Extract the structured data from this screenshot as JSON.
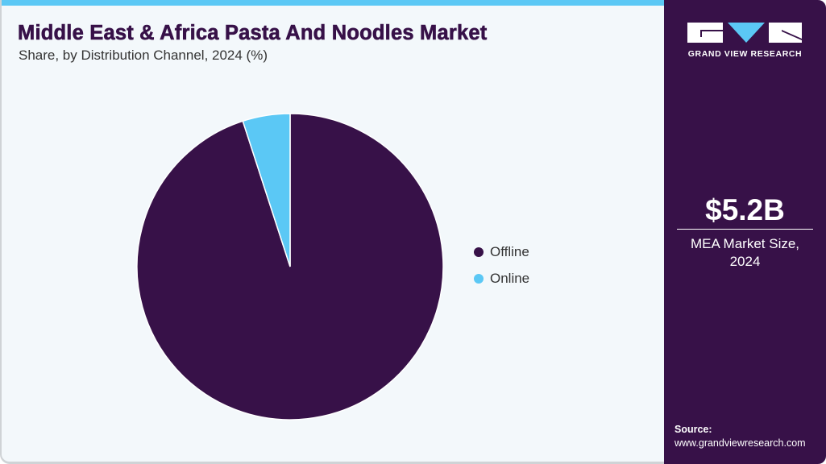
{
  "header": {
    "title": "Middle East & Africa Pasta And Noodles Market",
    "subtitle": "Share, by Distribution Channel, 2024 (%)"
  },
  "colors": {
    "offline": "#371148",
    "online": "#5bc8f5",
    "background": "#f3f8fb",
    "side_panel": "#371148",
    "accent_bar": "#5bc8f5"
  },
  "legend": {
    "items": [
      {
        "label": "Offline",
        "color": "#371148"
      },
      {
        "label": "Online",
        "color": "#5bc8f5"
      }
    ]
  },
  "side_panel": {
    "logo_text": "GRAND VIEW RESEARCH",
    "market_value": "$5.2B",
    "market_label_line1": "MEA Market Size,",
    "market_label_line2": "2024",
    "source_label": "Source:",
    "source_url": "www.grandviewresearch.com"
  },
  "chart_data": {
    "type": "pie",
    "title": "Middle East & Africa Pasta And Noodles Market",
    "subtitle": "Share, by Distribution Channel, 2024 (%)",
    "categories": [
      "Offline",
      "Online"
    ],
    "values": [
      95,
      5
    ],
    "colors": [
      "#371148",
      "#5bc8f5"
    ],
    "legend_position": "right",
    "start_angle": "12 o'clock, counter-clockwise for Online"
  }
}
